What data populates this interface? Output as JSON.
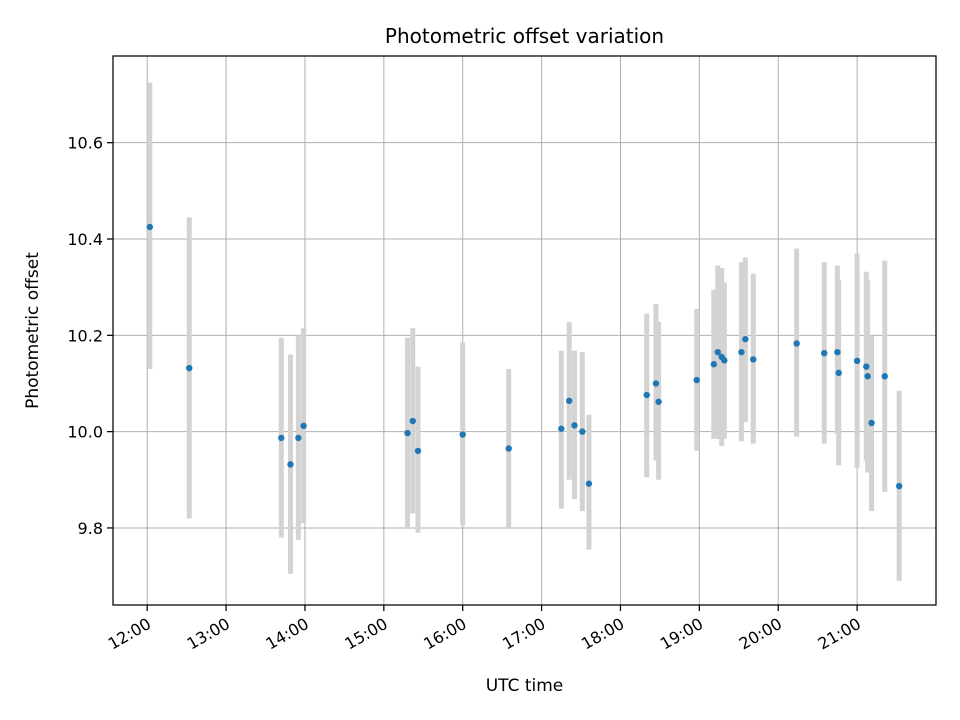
{
  "chart_data": {
    "type": "scatter",
    "title": "Photometric offset variation",
    "xlabel": "UTC time",
    "ylabel": "Photometric offset",
    "x_tick_labels": [
      "12:00",
      "13:00",
      "14:00",
      "15:00",
      "16:00",
      "17:00",
      "18:00",
      "19:00",
      "20:00",
      "21:00"
    ],
    "y_tick_labels": [
      "9.8",
      "10.0",
      "10.2",
      "10.4",
      "10.6"
    ],
    "y_ticks": [
      9.8,
      10.0,
      10.2,
      10.4,
      10.6
    ],
    "xlim": [
      "11:34",
      "22:00"
    ],
    "ylim": [
      9.64,
      10.78
    ],
    "grid": true,
    "marker_color": "#1f77b4",
    "errorbar_color": "#d3d3d3",
    "points": [
      {
        "t": "12:02",
        "y": 10.425,
        "lo": 10.13,
        "hi": 10.725
      },
      {
        "t": "12:32",
        "y": 10.132,
        "lo": 9.82,
        "hi": 10.445
      },
      {
        "t": "13:42",
        "y": 9.987,
        "lo": 9.78,
        "hi": 10.195
      },
      {
        "t": "13:49",
        "y": 9.932,
        "lo": 9.705,
        "hi": 10.16
      },
      {
        "t": "13:55",
        "y": 9.987,
        "lo": 9.775,
        "hi": 10.2
      },
      {
        "t": "13:59",
        "y": 10.012,
        "lo": 9.81,
        "hi": 10.215
      },
      {
        "t": "15:18",
        "y": 9.997,
        "lo": 9.8,
        "hi": 10.195
      },
      {
        "t": "15:22",
        "y": 10.022,
        "lo": 9.83,
        "hi": 10.215
      },
      {
        "t": "15:26",
        "y": 9.96,
        "lo": 9.79,
        "hi": 10.135
      },
      {
        "t": "16:00",
        "y": 9.994,
        "lo": 9.805,
        "hi": 10.185
      },
      {
        "t": "16:35",
        "y": 9.965,
        "lo": 9.8,
        "hi": 10.13
      },
      {
        "t": "17:15",
        "y": 10.006,
        "lo": 9.84,
        "hi": 10.168
      },
      {
        "t": "17:21",
        "y": 10.064,
        "lo": 9.9,
        "hi": 10.228
      },
      {
        "t": "17:25",
        "y": 10.013,
        "lo": 9.86,
        "hi": 10.168
      },
      {
        "t": "17:31",
        "y": 10.0,
        "lo": 9.835,
        "hi": 10.165
      },
      {
        "t": "17:36",
        "y": 9.892,
        "lo": 9.755,
        "hi": 10.035
      },
      {
        "t": "18:20",
        "y": 10.076,
        "lo": 9.905,
        "hi": 10.245
      },
      {
        "t": "18:27",
        "y": 10.1,
        "lo": 9.94,
        "hi": 10.265
      },
      {
        "t": "18:29",
        "y": 10.062,
        "lo": 9.9,
        "hi": 10.228
      },
      {
        "t": "18:58",
        "y": 10.107,
        "lo": 9.96,
        "hi": 10.255
      },
      {
        "t": "19:11",
        "y": 10.14,
        "lo": 9.985,
        "hi": 10.295
      },
      {
        "t": "19:14",
        "y": 10.165,
        "lo": 9.985,
        "hi": 10.345
      },
      {
        "t": "19:17",
        "y": 10.155,
        "lo": 9.97,
        "hi": 10.34
      },
      {
        "t": "19:19",
        "y": 10.148,
        "lo": 9.985,
        "hi": 10.31
      },
      {
        "t": "19:32",
        "y": 10.165,
        "lo": 9.98,
        "hi": 10.352
      },
      {
        "t": "19:35",
        "y": 10.192,
        "lo": 10.02,
        "hi": 10.362
      },
      {
        "t": "19:41",
        "y": 10.15,
        "lo": 9.975,
        "hi": 10.328
      },
      {
        "t": "20:14",
        "y": 10.183,
        "lo": 9.99,
        "hi": 10.38
      },
      {
        "t": "20:35",
        "y": 10.163,
        "lo": 9.975,
        "hi": 10.352
      },
      {
        "t": "20:45",
        "y": 10.165,
        "lo": 9.995,
        "hi": 10.345
      },
      {
        "t": "20:46",
        "y": 10.122,
        "lo": 9.93,
        "hi": 10.315
      },
      {
        "t": "21:00",
        "y": 10.147,
        "lo": 9.925,
        "hi": 10.37
      },
      {
        "t": "21:07",
        "y": 10.135,
        "lo": 9.94,
        "hi": 10.332
      },
      {
        "t": "21:08",
        "y": 10.115,
        "lo": 9.915,
        "hi": 10.315
      },
      {
        "t": "21:11",
        "y": 10.018,
        "lo": 9.835,
        "hi": 10.2
      },
      {
        "t": "21:21",
        "y": 10.115,
        "lo": 9.875,
        "hi": 10.355
      },
      {
        "t": "21:32",
        "y": 9.887,
        "lo": 9.69,
        "hi": 10.085
      }
    ]
  }
}
